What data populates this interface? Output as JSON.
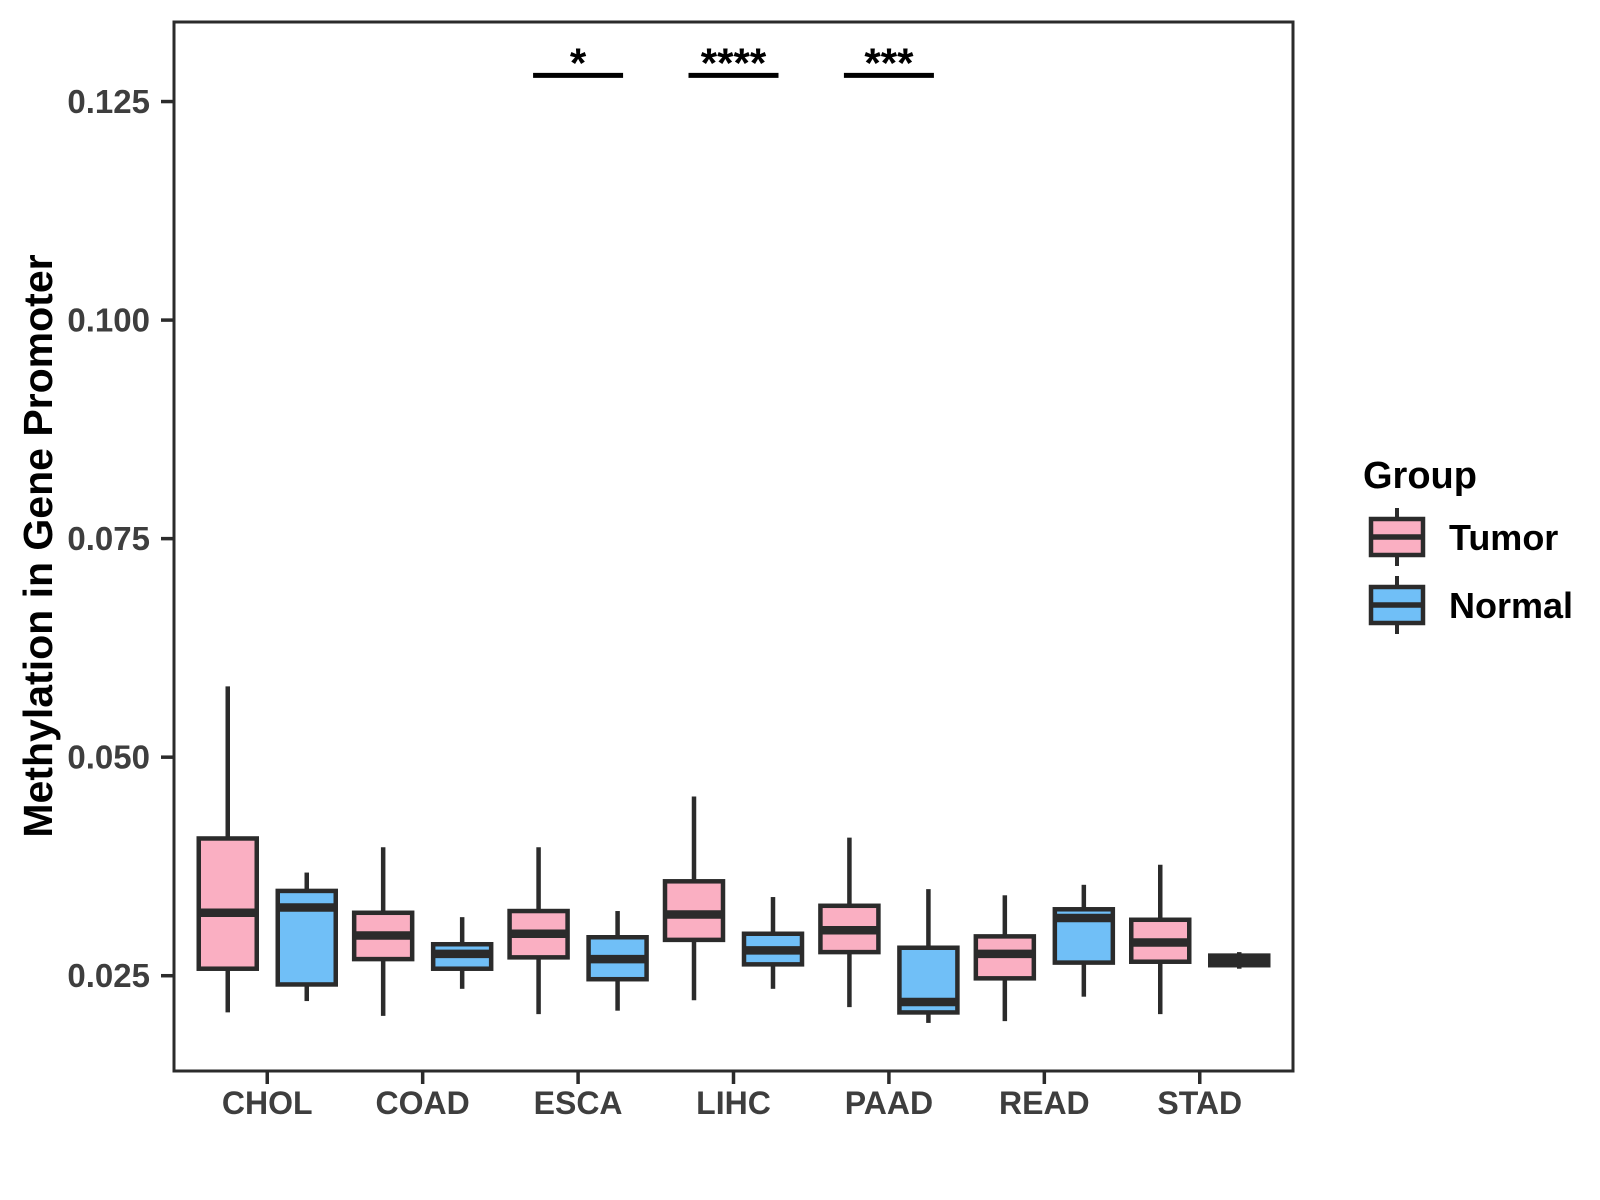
{
  "chart_data": {
    "type": "boxplot",
    "title": "",
    "xlabel": "",
    "ylabel": "Methylation in Gene Promoter",
    "categories": [
      "CHOL",
      "COAD",
      "ESCA",
      "LIHC",
      "PAAD",
      "READ",
      "STAD"
    ],
    "y_tick_labels": [
      "0.025",
      "0.050",
      "0.075",
      "0.100",
      "0.125"
    ],
    "ylim": [
      0.0141,
      0.1341
    ],
    "grid": "off",
    "legend": {
      "position": "right",
      "title": "Group",
      "entries": [
        {
          "label": "Tumor",
          "color": "#FAAFC2"
        },
        {
          "label": "Normal",
          "color": "#70BFF7"
        }
      ]
    },
    "series": [
      {
        "name": "Tumor",
        "color": "#FAAFC2",
        "boxes": [
          {
            "category": "CHOL",
            "low": 0.0208,
            "q1": 0.0258,
            "median": 0.0322,
            "q3": 0.0407,
            "high": 0.0581
          },
          {
            "category": "COAD",
            "low": 0.0204,
            "q1": 0.0269,
            "median": 0.0296,
            "q3": 0.0322,
            "high": 0.0397
          },
          {
            "category": "ESCA",
            "low": 0.0206,
            "q1": 0.0271,
            "median": 0.0298,
            "q3": 0.0324,
            "high": 0.0397
          },
          {
            "category": "LIHC",
            "low": 0.0222,
            "q1": 0.0291,
            "median": 0.032,
            "q3": 0.0358,
            "high": 0.0455
          },
          {
            "category": "PAAD",
            "low": 0.0214,
            "q1": 0.0277,
            "median": 0.0302,
            "q3": 0.033,
            "high": 0.0408
          },
          {
            "category": "READ",
            "low": 0.0198,
            "q1": 0.0247,
            "median": 0.0275,
            "q3": 0.0295,
            "high": 0.0342
          },
          {
            "category": "STAD",
            "low": 0.0206,
            "q1": 0.0266,
            "median": 0.0288,
            "q3": 0.0314,
            "high": 0.0377
          }
        ]
      },
      {
        "name": "Normal",
        "color": "#70BFF7",
        "boxes": [
          {
            "category": "CHOL",
            "low": 0.0221,
            "q1": 0.024,
            "median": 0.0328,
            "q3": 0.0347,
            "high": 0.0368
          },
          {
            "category": "COAD",
            "low": 0.0235,
            "q1": 0.0258,
            "median": 0.0275,
            "q3": 0.0286,
            "high": 0.0317
          },
          {
            "category": "ESCA",
            "low": 0.021,
            "q1": 0.0246,
            "median": 0.0269,
            "q3": 0.0294,
            "high": 0.0324
          },
          {
            "category": "LIHC",
            "low": 0.0235,
            "q1": 0.0263,
            "median": 0.0279,
            "q3": 0.0298,
            "high": 0.034
          },
          {
            "category": "PAAD",
            "low": 0.0196,
            "q1": 0.0208,
            "median": 0.022,
            "q3": 0.0282,
            "high": 0.0349
          },
          {
            "category": "READ",
            "low": 0.0226,
            "q1": 0.0265,
            "median": 0.0316,
            "q3": 0.0326,
            "high": 0.0354
          },
          {
            "category": "STAD",
            "low": 0.0258,
            "q1": 0.0262,
            "median": 0.0268,
            "q3": 0.0273,
            "high": 0.0277
          }
        ]
      }
    ],
    "significance": [
      {
        "category": "ESCA",
        "label": "*",
        "y_value": 0.128
      },
      {
        "category": "LIHC",
        "label": "****",
        "y_value": 0.128
      },
      {
        "category": "PAAD",
        "label": "***",
        "y_value": 0.128
      }
    ],
    "style": {
      "box_stroke": "#2B2B2B",
      "axis_text_color": "#3E3E3E",
      "panel_border": "#2B2B2B",
      "significance_color": "#000000"
    }
  }
}
